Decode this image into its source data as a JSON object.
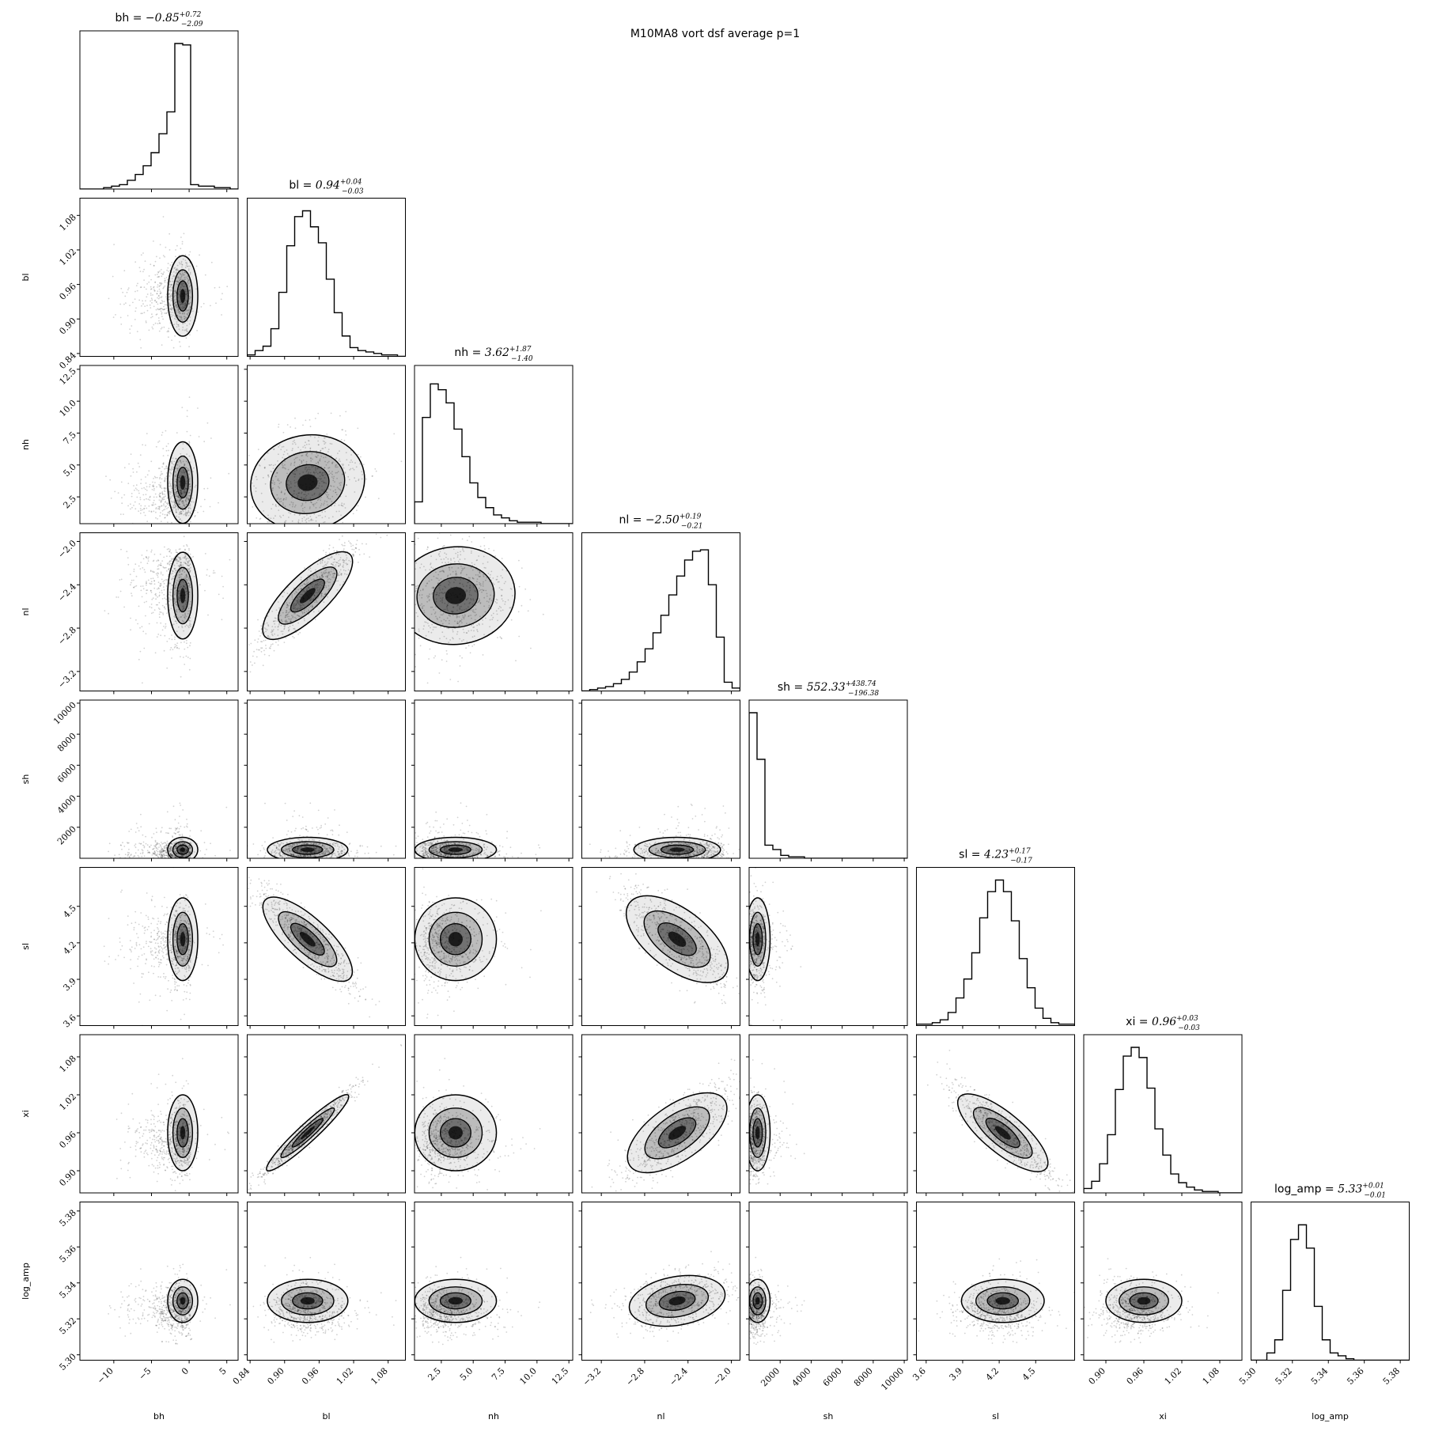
{
  "figure": {
    "suptitle": "M10MA8 vort dsf average p=1"
  },
  "chart_data": {
    "type": "corner",
    "title": "M10MA8 vort dsf average p=1",
    "parameters": [
      {
        "name": "bh",
        "median": -0.85,
        "plus": 0.72,
        "minus": 2.09,
        "title_prefix": "bh = ",
        "title_value": "−0.85",
        "title_plus": "+0.72",
        "title_minus": "−2.09",
        "range": [
          -14.5,
          6.5
        ],
        "ticks": [
          -10,
          -5,
          0,
          5
        ],
        "tick_labels": [
          "−10",
          "−5",
          "0",
          "5"
        ],
        "hist": [
          0,
          0,
          0,
          0.01,
          0.02,
          0.03,
          0.06,
          0.1,
          0.16,
          0.25,
          0.38,
          0.53,
          1.0,
          0.99,
          0.03,
          0.02,
          0.02,
          0.01,
          0.01,
          0
        ],
        "spread": 1.0
      },
      {
        "name": "bl",
        "median": 0.94,
        "plus": 0.04,
        "minus": 0.03,
        "title_prefix": "bl = ",
        "title_value": "0.94",
        "title_plus": "+0.04",
        "title_minus": "−0.03",
        "range": [
          0.835,
          1.11
        ],
        "ticks": [
          0.84,
          0.9,
          0.96,
          1.02,
          1.08
        ],
        "tick_labels": [
          "0.84",
          "0.90",
          "0.96",
          "1.02",
          "1.08"
        ],
        "hist": [
          0.01,
          0.04,
          0.07,
          0.19,
          0.44,
          0.76,
          0.96,
          1.0,
          0.89,
          0.78,
          0.53,
          0.3,
          0.14,
          0.06,
          0.04,
          0.03,
          0.02,
          0.01,
          0.01,
          0
        ],
        "spread": 0.035
      },
      {
        "name": "nh",
        "median": 3.62,
        "plus": 1.87,
        "minus": 1.4,
        "title_prefix": "nh = ",
        "title_value": "3.62",
        "title_plus": "+1.87",
        "title_minus": "−1.40",
        "range": [
          0.4,
          12.8
        ],
        "ticks": [
          2.5,
          5.0,
          7.5,
          10.0,
          12.5
        ],
        "tick_labels": [
          "2.5",
          "5.0",
          "7.5",
          "10.0",
          "12.5"
        ],
        "hist": [
          0.15,
          0.73,
          0.96,
          0.92,
          0.83,
          0.65,
          0.46,
          0.28,
          0.18,
          0.11,
          0.06,
          0.04,
          0.02,
          0.01,
          0.01,
          0.01,
          0,
          0,
          0,
          0
        ],
        "spread": 1.6
      },
      {
        "name": "nl",
        "median": -2.5,
        "plus": 0.19,
        "minus": 0.21,
        "title_prefix": "nl = ",
        "title_value": "−2.50",
        "title_plus": "+0.19",
        "title_minus": "−0.21",
        "range": [
          -3.38,
          -1.92
        ],
        "ticks": [
          -3.2,
          -2.8,
          -2.4,
          -2.0
        ],
        "tick_labels": [
          "−3.2",
          "−2.8",
          "−2.4",
          "−2.0"
        ],
        "hist": [
          0,
          0.01,
          0.02,
          0.03,
          0.05,
          0.08,
          0.13,
          0.2,
          0.29,
          0.4,
          0.52,
          0.66,
          0.79,
          0.9,
          0.96,
          0.97,
          0.73,
          0.37,
          0.06,
          0.02
        ],
        "spread": 0.2
      },
      {
        "name": "sh",
        "median": 552.33,
        "plus": 438.74,
        "minus": 196.38,
        "title_prefix": "sh = ",
        "title_value": "552.33",
        "title_plus": "+438.74",
        "title_minus": "−196.38",
        "range": [
          0,
          10200
        ],
        "ticks": [
          2000,
          4000,
          6000,
          8000,
          10000
        ],
        "tick_labels": [
          "2000",
          "4000",
          "6000",
          "8000",
          "10000"
        ],
        "hist": [
          1.0,
          0.68,
          0.09,
          0.06,
          0.02,
          0.01,
          0.01,
          0,
          0,
          0,
          0,
          0,
          0,
          0,
          0,
          0,
          0,
          0,
          0,
          0
        ],
        "spread": 400
      },
      {
        "name": "sl",
        "median": 4.23,
        "plus": 0.17,
        "minus": 0.17,
        "title_prefix": "sl = ",
        "title_value": "4.23",
        "title_plus": "+0.17",
        "title_minus": "−0.17",
        "range": [
          3.52,
          4.82
        ],
        "ticks": [
          3.6,
          3.9,
          4.2,
          4.5
        ],
        "tick_labels": [
          "3.6",
          "3.9",
          "4.2",
          "4.5"
        ],
        "hist": [
          0.01,
          0.01,
          0.02,
          0.04,
          0.09,
          0.19,
          0.32,
          0.5,
          0.74,
          0.92,
          1.0,
          0.92,
          0.72,
          0.46,
          0.26,
          0.12,
          0.05,
          0.02,
          0.01,
          0.01
        ],
        "spread": 0.17
      },
      {
        "name": "xi",
        "median": 0.96,
        "plus": 0.03,
        "minus": 0.03,
        "title_prefix": "xi = ",
        "title_value": "0.96",
        "title_plus": "+0.03",
        "title_minus": "−0.03",
        "range": [
          0.865,
          1.115
        ],
        "ticks": [
          0.9,
          0.96,
          1.02,
          1.08
        ],
        "tick_labels": [
          "0.90",
          "0.96",
          "1.02",
          "1.08"
        ],
        "hist": [
          0.03,
          0.08,
          0.2,
          0.4,
          0.71,
          0.94,
          1.0,
          0.93,
          0.72,
          0.44,
          0.26,
          0.13,
          0.07,
          0.04,
          0.02,
          0.01,
          0.01,
          0,
          0,
          0
        ],
        "spread": 0.03
      },
      {
        "name": "log_amp",
        "median": 5.33,
        "plus": 0.01,
        "minus": 0.01,
        "title_prefix": "log_amp = ",
        "title_value": "5.33",
        "title_plus": "+0.01",
        "title_minus": "−0.01",
        "range": [
          5.297,
          5.385
        ],
        "ticks": [
          5.3,
          5.32,
          5.34,
          5.36,
          5.38
        ],
        "tick_labels": [
          "5.30",
          "5.32",
          "5.34",
          "5.36",
          "5.38"
        ],
        "hist": [
          0,
          0,
          0.05,
          0.14,
          0.48,
          0.83,
          0.93,
          0.77,
          0.37,
          0.14,
          0.05,
          0.03,
          0.01,
          0,
          0,
          0,
          0,
          0,
          0,
          0
        ],
        "spread": 0.006
      }
    ],
    "correlations": {
      "bl|nl": 0.9,
      "bl|sl": -0.9,
      "bl|xi": 0.98,
      "nl|sl": -0.8,
      "nl|xi": 0.8,
      "sl|xi": -0.9,
      "nl|log_amp": 0.35,
      "bl|nh": 0.2,
      "nh|nl": 0.1
    },
    "xlabels": [
      "bh",
      "bl",
      "nh",
      "nl",
      "sh",
      "sl",
      "xi",
      "log_amp"
    ],
    "ylabels": [
      "bl",
      "nh",
      "nl",
      "sh",
      "sl",
      "xi",
      "log_amp"
    ],
    "grid": false
  },
  "colors": {
    "axes": "#000000",
    "points": "#000000",
    "density": "#000000",
    "background": "#ffffff"
  }
}
